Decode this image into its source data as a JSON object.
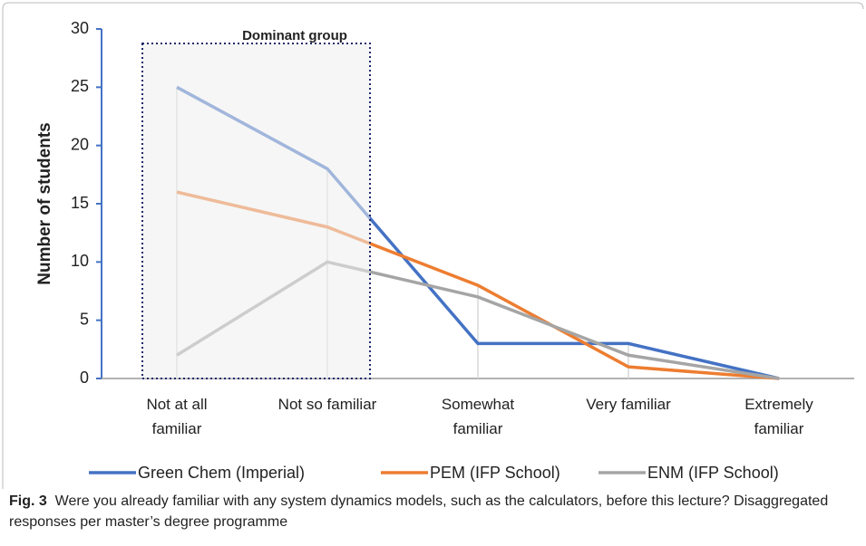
{
  "chart_data": {
    "type": "line",
    "y_label": "Number of students",
    "annotation": "Dominant group",
    "categories": [
      "Not at all\nfamiliar",
      "Not so familiar",
      "Somewhat\nfamiliar",
      "Very familiar",
      "Extremely\nfamiliar"
    ],
    "series": [
      {
        "name": "Green Chem (Imperial)",
        "color": "#4472c4",
        "values": [
          25,
          18,
          3,
          3,
          0
        ]
      },
      {
        "name": "PEM (IFP School)",
        "color": "#ed7d31",
        "values": [
          16,
          13,
          8,
          1,
          0
        ]
      },
      {
        "name": "ENM (IFP School)",
        "color": "#a5a5a5",
        "values": [
          2,
          10,
          7,
          2,
          0
        ]
      }
    ],
    "ylim": [
      0,
      30
    ],
    "yticks": [
      0,
      5,
      10,
      15,
      20,
      25,
      30
    ],
    "legend": "bottom",
    "caption": {
      "label": "Fig. 3",
      "text": "Were you already familiar with any system dynamics models, such as the calculators, before this lecture? Disaggregated responses per master’s degree programme"
    }
  }
}
